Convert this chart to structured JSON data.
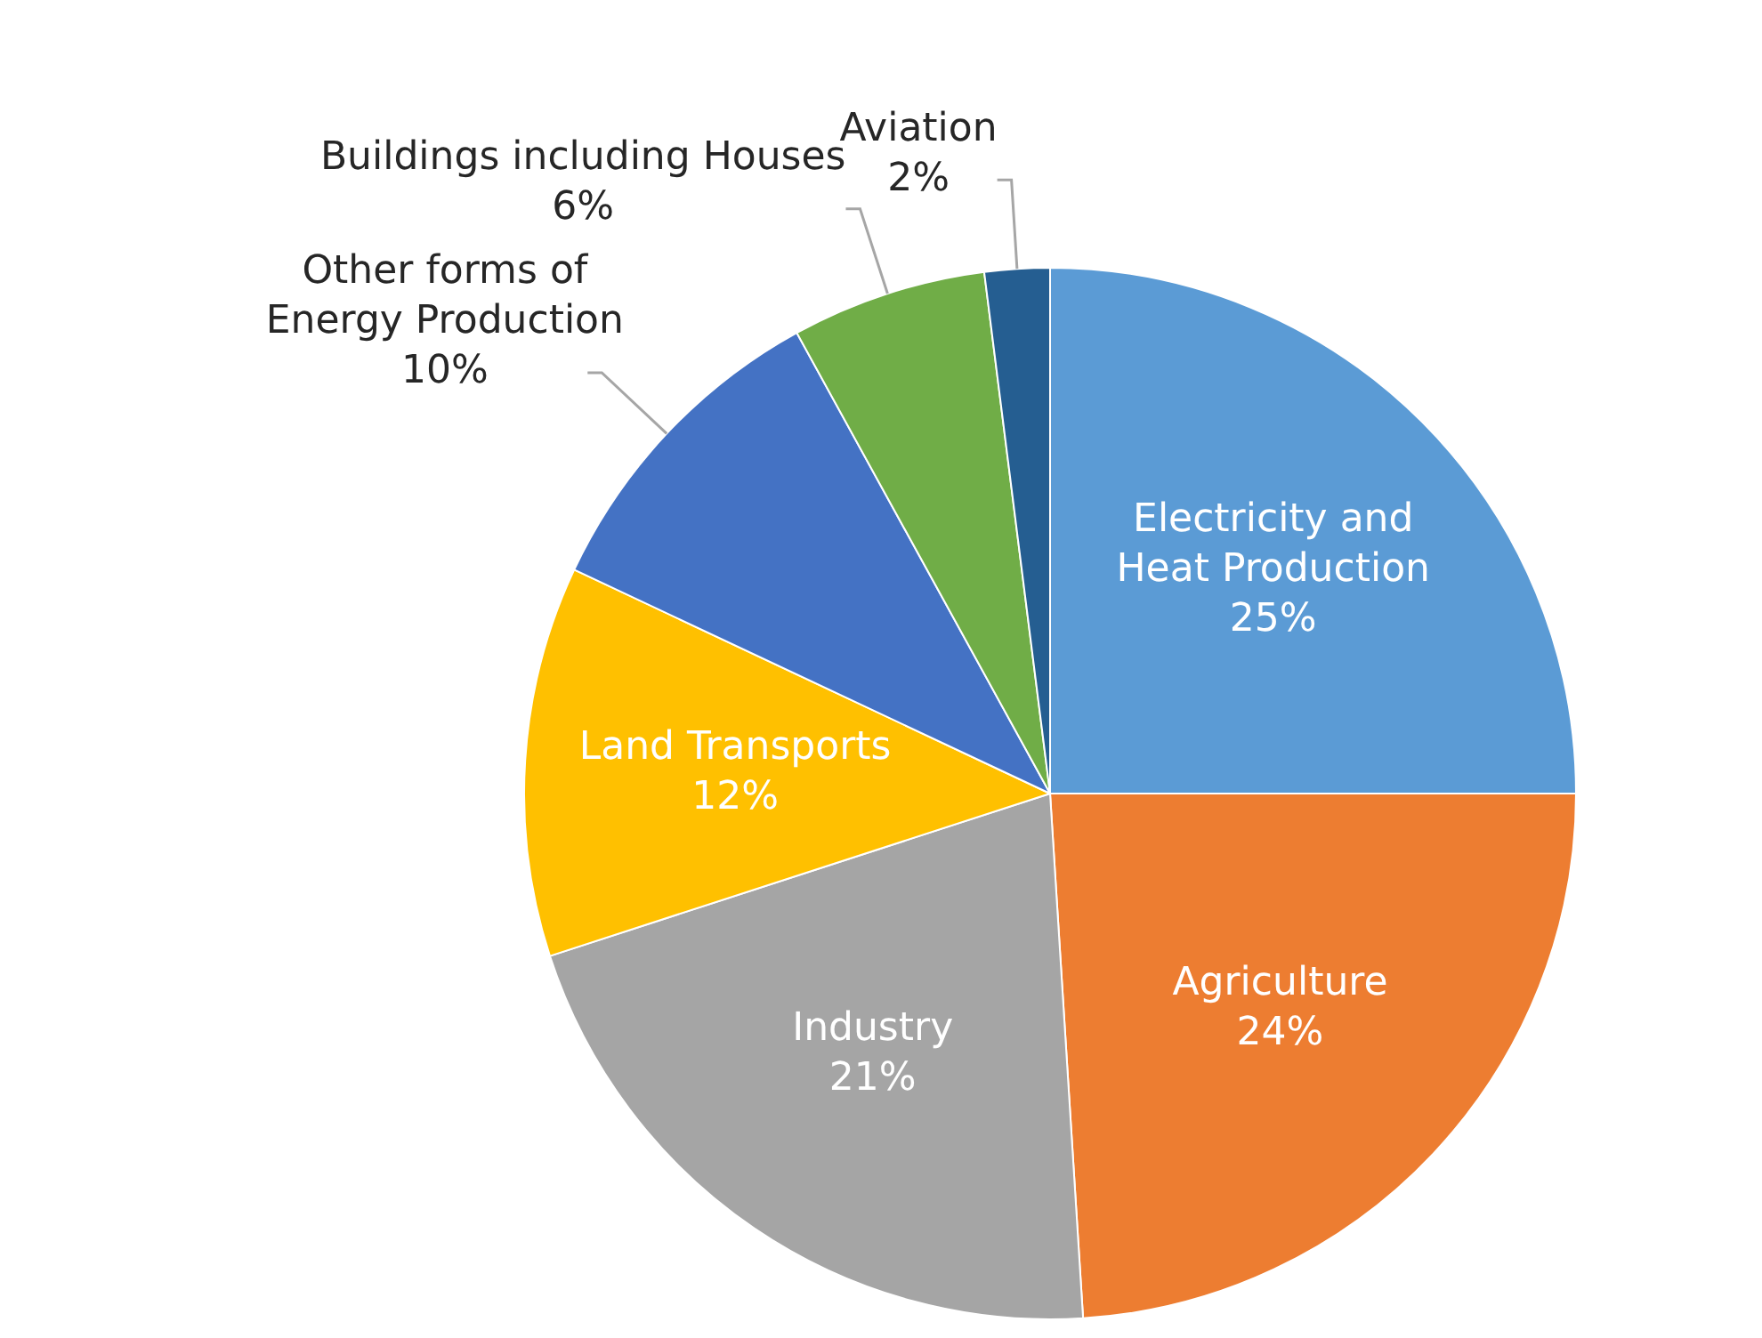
{
  "chart_data": {
    "type": "pie",
    "categories": [
      "Electricity and Heat Production",
      "Agriculture",
      "Industry",
      "Land Transports",
      "Other forms of Energy Production",
      "Buildings including Houses",
      "Aviation"
    ],
    "values": [
      25,
      24,
      21,
      12,
      10,
      6,
      2
    ],
    "value_labels": [
      "25%",
      "24%",
      "21%",
      "12%",
      "10%",
      "6%",
      "2%"
    ],
    "colors": [
      "#5b9bd5",
      "#ed7d31",
      "#a5a5a5",
      "#ffc000",
      "#4472c4",
      "#70ad47",
      "#255e91"
    ],
    "legend": false
  }
}
